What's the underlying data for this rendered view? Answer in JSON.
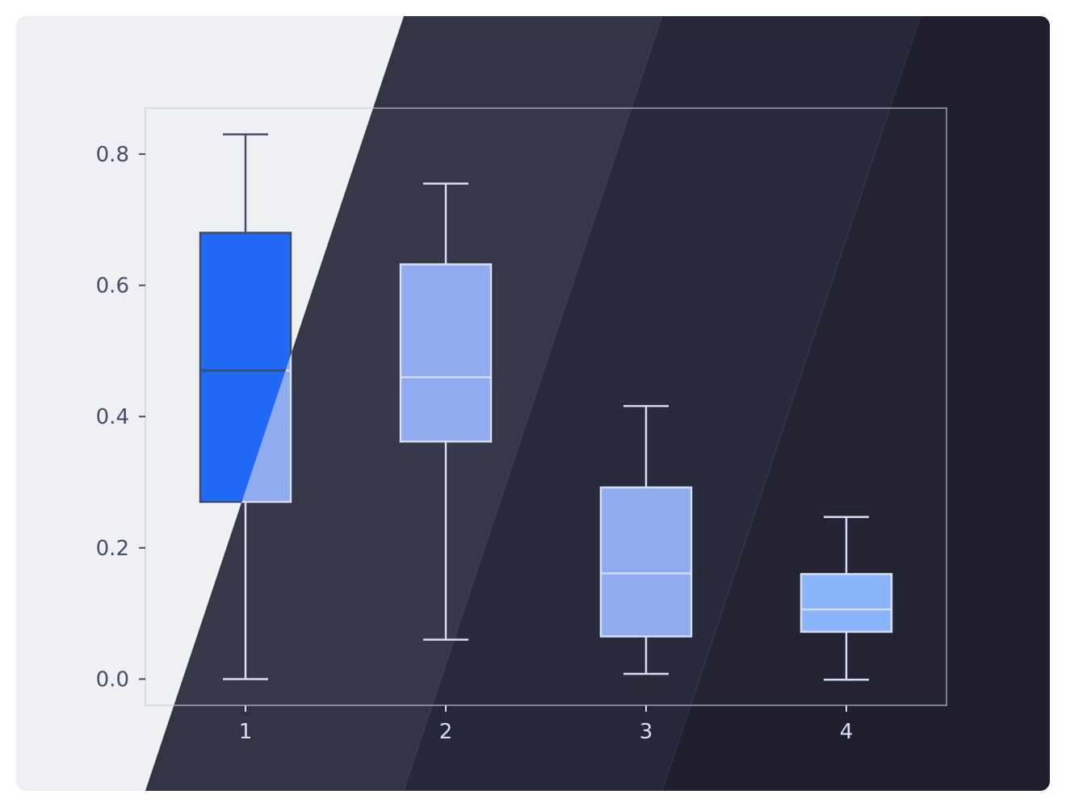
{
  "theme": {
    "light_bg": "#eff0f4",
    "dark_band_1": "#323446",
    "dark_band_2": "#25273a",
    "dark_band_3": "#1f1f2e",
    "highlight_box_fill": "#2069f5",
    "box_fill": "#8eabef",
    "box_fill_last": "#89b4fa",
    "box_stroke_light": "#d7dcf8",
    "box_stroke_dark": "#3d4a6e",
    "axis_text_dark": "#4a4a6a",
    "axis_text_light": "#d7dcf8",
    "frame": "#c9ccd6"
  },
  "chart_data": {
    "type": "box",
    "categories": [
      "1",
      "2",
      "3",
      "4"
    ],
    "boxes": [
      {
        "category": "1",
        "whisker_low": 0.0,
        "q1": 0.27,
        "median": 0.47,
        "q3": 0.68,
        "whisker_high": 0.83,
        "highlight": true
      },
      {
        "category": "2",
        "whisker_low": 0.06,
        "q1": 0.362,
        "median": 0.46,
        "q3": 0.632,
        "whisker_high": 0.755,
        "highlight": false
      },
      {
        "category": "3",
        "whisker_low": 0.008,
        "q1": 0.065,
        "median": 0.161,
        "q3": 0.292,
        "whisker_high": 0.416,
        "highlight": false
      },
      {
        "category": "4",
        "whisker_low": -0.001,
        "q1": 0.072,
        "median": 0.106,
        "q3": 0.16,
        "whisker_high": 0.247,
        "highlight": false
      }
    ],
    "y_ticks": [
      0.0,
      0.2,
      0.4,
      0.6,
      0.8
    ],
    "y_tick_labels": [
      "0.0",
      "0.2",
      "0.4",
      "0.6",
      "0.8"
    ],
    "ylim": [
      -0.04,
      0.87
    ],
    "xlim": [
      0.5,
      4.5
    ],
    "title": "",
    "xlabel": "",
    "ylabel": "",
    "grid": false,
    "legend": "none"
  }
}
